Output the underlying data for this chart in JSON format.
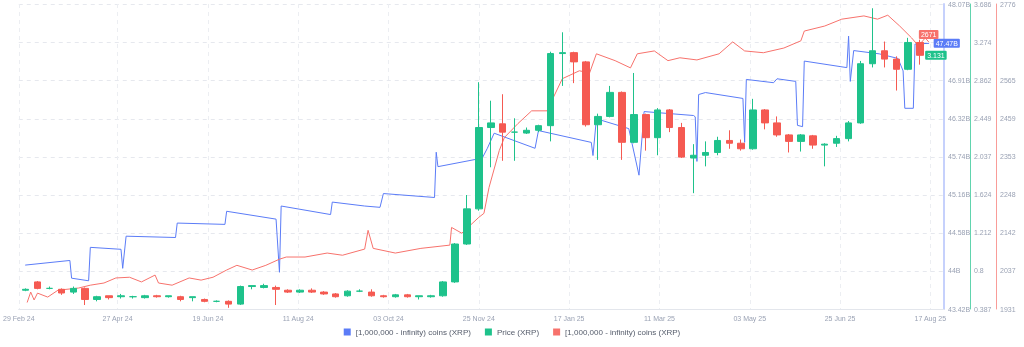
{
  "chart_data": {
    "type": "line",
    "legend": "bottom",
    "grid": true,
    "marker": "none",
    "line_style": "solid",
    "xlim": [
      "2024-02-29",
      "2025-08-25"
    ],
    "xticks": [
      {
        "value": "2024-02-29",
        "label": "29 Feb 24"
      },
      {
        "value": "2024-04-27",
        "label": "27 Apr 24"
      },
      {
        "value": "2024-06-19",
        "label": "19 Jun 24"
      },
      {
        "value": "2024-08-11",
        "label": "11 Aug 24"
      },
      {
        "value": "2024-10-03",
        "label": "03 Oct 24"
      },
      {
        "value": "2024-11-25",
        "label": "25 Nov 24"
      },
      {
        "value": "2025-01-17",
        "label": "17 Jan 25"
      },
      {
        "value": "2025-03-11",
        "label": "11 Mar 25"
      },
      {
        "value": "2025-05-03",
        "label": "03 May 25"
      },
      {
        "value": "2025-06-25",
        "label": "25 Jun 25"
      },
      {
        "value": "2025-08-17",
        "label": "17 Aug 25"
      }
    ],
    "ylim": [
      43.42,
      48.07
    ],
    "yticks": [
      {
        "value": 43.42,
        "label": "43.42B"
      },
      {
        "value": 44,
        "label": "44B"
      },
      {
        "value": 44.58,
        "label": "44.58B"
      },
      {
        "value": 45.16,
        "label": "45.16B"
      },
      {
        "value": 45.74,
        "label": "45.74B"
      },
      {
        "value": 46.32,
        "label": "46.32B"
      },
      {
        "value": 46.91,
        "label": "46.91B"
      },
      {
        "value": 47.49,
        "label": null
      },
      {
        "value": 48.07,
        "label": "48.07B"
      }
    ],
    "y2lim": [
      0.387,
      3.686
    ],
    "y2ticks": [
      0.387,
      0.8,
      1.212,
      1.624,
      2.037,
      2.449,
      2.862,
      3.274,
      3.686
    ],
    "y3lim": [
      1931,
      2776
    ],
    "y3ticks": [
      1931,
      2037,
      2142,
      2248,
      2353,
      2459,
      2565,
      2776
    ],
    "series": [
      {
        "name": "[1,000,000 - infinity) coins (XRP)",
        "axis": "y",
        "color": "#5b7cf7",
        "x": [
          "2024-03-04",
          "2024-03-30",
          "2024-03-31",
          "2024-04-10",
          "2024-04-11",
          "2024-04-29",
          "2024-04-30",
          "2024-05-02",
          "2024-05-31",
          "2024-06-01",
          "2024-06-29",
          "2024-06-30",
          "2024-07-29",
          "2024-07-31",
          "2024-08-01",
          "2024-08-30",
          "2024-08-31",
          "2024-09-19",
          "2024-09-28",
          "2024-09-30",
          "2024-10-30",
          "2024-10-31",
          "2024-11-01",
          "2024-11-27",
          "2024-11-30",
          "2024-12-04",
          "2024-12-28",
          "2024-12-30",
          "2025-01-30",
          "2025-01-31",
          "2025-02-02",
          "2025-02-21",
          "2025-02-27",
          "2025-03-02",
          "2025-03-31",
          "2025-04-01",
          "2025-04-02",
          "2025-04-03",
          "2025-04-07",
          "2025-04-29",
          "2025-04-30",
          "2025-05-01",
          "2025-05-17",
          "2025-05-19",
          "2025-05-30",
          "2025-05-31",
          "2025-06-03",
          "2025-06-04",
          "2025-06-29",
          "2025-06-30",
          "2025-07-01",
          "2025-07-03",
          "2025-07-18",
          "2025-07-29",
          "2025-08-01",
          "2025-08-02",
          "2025-08-07",
          "2025-08-08",
          "2025-08-16"
        ],
        "values": [
          44.09,
          44.16,
          43.89,
          43.85,
          44.36,
          44.33,
          44.04,
          44.53,
          44.51,
          44.73,
          44.71,
          44.91,
          44.79,
          43.98,
          44.99,
          44.86,
          45.05,
          44.99,
          44.97,
          45.18,
          45.12,
          45.81,
          45.59,
          45.72,
          45.87,
          46.1,
          45.87,
          46.14,
          45.96,
          45.76,
          46.32,
          46.17,
          45.46,
          46.43,
          46.37,
          46.35,
          45.67,
          46.69,
          46.72,
          46.63,
          45.96,
          46.92,
          46.87,
          46.93,
          46.89,
          46.22,
          46.2,
          47.2,
          47.1,
          47.58,
          46.89,
          47.36,
          47.31,
          47.24,
          47.05,
          46.48,
          46.48,
          47.46,
          47.47
        ],
        "value_labels": [
          null,
          null,
          null,
          null,
          null,
          null,
          null,
          null,
          null,
          null,
          null,
          null,
          null,
          null,
          null,
          null,
          null,
          null,
          null,
          null,
          null,
          null,
          null,
          null,
          null,
          null,
          null,
          null,
          null,
          null,
          null,
          null,
          null,
          null,
          null,
          null,
          null,
          null,
          null,
          null,
          null,
          null,
          null,
          null,
          null,
          null,
          null,
          null,
          null,
          null,
          null,
          null,
          null,
          null,
          null,
          null,
          null,
          null,
          "47.47B"
        ]
      },
      {
        "name": "Price (XRP)",
        "type": "candlestick",
        "axis": "y2",
        "color": "#1ec28b",
        "x": [
          "2024-03-04",
          "2024-03-11",
          "2024-03-18",
          "2024-03-25",
          "2024-04-01",
          "2024-04-08",
          "2024-04-15",
          "2024-04-22",
          "2024-04-29",
          "2024-05-06",
          "2024-05-13",
          "2024-05-20",
          "2024-05-27",
          "2024-06-03",
          "2024-06-10",
          "2024-06-17",
          "2024-06-24",
          "2024-07-01",
          "2024-07-08",
          "2024-07-15",
          "2024-07-22",
          "2024-07-29",
          "2024-08-05",
          "2024-08-12",
          "2024-08-19",
          "2024-08-26",
          "2024-09-02",
          "2024-09-09",
          "2024-09-16",
          "2024-09-23",
          "2024-09-30",
          "2024-10-07",
          "2024-10-14",
          "2024-10-21",
          "2024-10-28",
          "2024-11-04",
          "2024-11-11",
          "2024-11-18",
          "2024-11-25",
          "2024-12-02",
          "2024-12-09",
          "2024-12-16",
          "2024-12-23",
          "2024-12-30",
          "2025-01-06",
          "2025-01-13",
          "2025-01-20",
          "2025-01-27",
          "2025-02-03",
          "2025-02-10",
          "2025-02-17",
          "2025-02-24",
          "2025-03-03",
          "2025-03-10",
          "2025-03-17",
          "2025-03-24",
          "2025-03-31",
          "2025-04-07",
          "2025-04-14",
          "2025-04-21",
          "2025-04-28",
          "2025-05-05",
          "2025-05-12",
          "2025-05-19",
          "2025-05-26",
          "2025-06-02",
          "2025-06-09",
          "2025-06-16",
          "2025-06-23",
          "2025-06-30",
          "2025-07-07",
          "2025-07-14",
          "2025-07-21",
          "2025-07-28",
          "2025-08-04",
          "2025-08-11"
        ],
        "ohlc": [
          [
            0.59,
            0.61,
            0.58,
            0.6
          ],
          [
            0.68,
            0.69,
            0.6,
            0.61
          ],
          [
            0.61,
            0.63,
            0.6,
            0.61
          ],
          [
            0.6,
            0.61,
            0.54,
            0.56
          ],
          [
            0.57,
            0.63,
            0.55,
            0.61
          ],
          [
            0.61,
            0.62,
            0.43,
            0.49
          ],
          [
            0.49,
            0.53,
            0.47,
            0.52
          ],
          [
            0.53,
            0.53,
            0.49,
            0.51
          ],
          [
            0.52,
            0.55,
            0.5,
            0.53
          ],
          [
            0.52,
            0.53,
            0.5,
            0.52
          ],
          [
            0.51,
            0.54,
            0.5,
            0.53
          ],
          [
            0.53,
            0.54,
            0.51,
            0.52
          ],
          [
            0.52,
            0.53,
            0.51,
            0.53
          ],
          [
            0.52,
            0.53,
            0.47,
            0.49
          ],
          [
            0.51,
            0.52,
            0.47,
            0.52
          ],
          [
            0.49,
            0.5,
            0.46,
            0.47
          ],
          [
            0.47,
            0.48,
            0.46,
            0.47
          ],
          [
            0.47,
            0.48,
            0.4,
            0.44
          ],
          [
            0.44,
            0.64,
            0.43,
            0.63
          ],
          [
            0.63,
            0.64,
            0.6,
            0.64
          ],
          [
            0.62,
            0.66,
            0.61,
            0.64
          ],
          [
            0.62,
            0.64,
            0.43,
            0.6
          ],
          [
            0.59,
            0.6,
            0.56,
            0.57
          ],
          [
            0.57,
            0.6,
            0.56,
            0.59
          ],
          [
            0.59,
            0.61,
            0.56,
            0.57
          ],
          [
            0.57,
            0.58,
            0.54,
            0.55
          ],
          [
            0.55,
            0.56,
            0.51,
            0.52
          ],
          [
            0.53,
            0.59,
            0.52,
            0.58
          ],
          [
            0.58,
            0.6,
            0.57,
            0.58
          ],
          [
            0.57,
            0.6,
            0.52,
            0.53
          ],
          [
            0.53,
            0.54,
            0.51,
            0.52
          ],
          [
            0.52,
            0.55,
            0.51,
            0.54
          ],
          [
            0.54,
            0.55,
            0.51,
            0.52
          ],
          [
            0.52,
            0.53,
            0.49,
            0.53
          ],
          [
            0.52,
            0.54,
            0.51,
            0.53
          ],
          [
            0.53,
            0.69,
            0.52,
            0.68
          ],
          [
            0.68,
            1.1,
            0.67,
            1.09
          ],
          [
            1.09,
            1.62,
            1.08,
            1.47
          ],
          [
            1.47,
            2.84,
            1.45,
            2.35
          ],
          [
            2.35,
            2.64,
            1.92,
            2.4
          ],
          [
            2.39,
            2.71,
            1.99,
            2.3
          ],
          [
            2.3,
            2.45,
            1.99,
            2.3
          ],
          [
            2.29,
            2.35,
            2.28,
            2.32
          ],
          [
            2.32,
            2.38,
            2.3,
            2.37
          ],
          [
            2.37,
            3.17,
            2.2,
            3.15
          ],
          [
            3.15,
            3.38,
            2.8,
            3.16
          ],
          [
            3.16,
            3.17,
            2.83,
            3.06
          ],
          [
            3.06,
            3.07,
            2.36,
            2.38
          ],
          [
            2.38,
            2.5,
            2.0,
            2.47
          ],
          [
            2.47,
            2.8,
            2.46,
            2.73
          ],
          [
            2.73,
            2.74,
            2.0,
            2.19
          ],
          [
            2.19,
            2.94,
            2.18,
            2.49
          ],
          [
            2.49,
            2.5,
            2.1,
            2.24
          ],
          [
            2.24,
            2.56,
            2.05,
            2.54
          ],
          [
            2.54,
            2.55,
            2.3,
            2.35
          ],
          [
            2.35,
            2.4,
            2.02,
            2.03
          ],
          [
            2.02,
            2.17,
            1.64,
            2.05
          ],
          [
            2.05,
            2.2,
            1.93,
            2.08
          ],
          [
            2.08,
            2.25,
            2.05,
            2.21
          ],
          [
            2.21,
            2.32,
            2.12,
            2.18
          ],
          [
            2.18,
            2.22,
            2.1,
            2.12
          ],
          [
            2.12,
            2.66,
            2.11,
            2.54
          ],
          [
            2.54,
            2.55,
            2.33,
            2.4
          ],
          [
            2.4,
            2.47,
            2.25,
            2.27
          ],
          [
            2.27,
            2.28,
            2.08,
            2.2
          ],
          [
            2.2,
            2.28,
            2.09,
            2.27
          ],
          [
            2.26,
            2.27,
            2.12,
            2.16
          ],
          [
            2.16,
            2.18,
            1.93,
            2.17
          ],
          [
            2.18,
            2.26,
            2.14,
            2.23
          ],
          [
            2.23,
            2.42,
            2.2,
            2.4
          ],
          [
            2.4,
            3.07,
            2.39,
            3.04
          ],
          [
            3.04,
            3.64,
            3.0,
            3.18
          ],
          [
            3.18,
            3.28,
            3.0,
            3.09
          ],
          [
            3.09,
            3.12,
            2.75,
            2.98
          ],
          [
            2.98,
            3.32,
            2.97,
            3.27
          ],
          [
            3.27,
            3.3,
            3.03,
            3.131
          ]
        ],
        "colors": [
          "#1ec28b",
          "#f55a52",
          "#1ec28b",
          "#f55a52",
          "#1ec28b",
          "#f55a52",
          "#1ec28b",
          "#f55a52",
          "#1ec28b",
          "#1ec28b",
          "#1ec28b",
          "#f55a52",
          "#1ec28b",
          "#f55a52",
          "#1ec28b",
          "#f55a52",
          "#1ec28b",
          "#f55a52",
          "#1ec28b",
          "#1ec28b",
          "#1ec28b",
          "#f55a52",
          "#f55a52",
          "#1ec28b",
          "#f55a52",
          "#f55a52",
          "#f55a52",
          "#1ec28b",
          "#1ec28b",
          "#f55a52",
          "#f55a52",
          "#1ec28b",
          "#f55a52",
          "#1ec28b",
          "#1ec28b",
          "#1ec28b",
          "#1ec28b",
          "#1ec28b",
          "#1ec28b",
          "#1ec28b",
          "#f55a52",
          "#1ec28b",
          "#1ec28b",
          "#1ec28b",
          "#1ec28b",
          "#1ec28b",
          "#f55a52",
          "#f55a52",
          "#1ec28b",
          "#1ec28b",
          "#f55a52",
          "#1ec28b",
          "#f55a52",
          "#1ec28b",
          "#f55a52",
          "#f55a52",
          "#1ec28b",
          "#1ec28b",
          "#1ec28b",
          "#f55a52",
          "#f55a52",
          "#1ec28b",
          "#f55a52",
          "#f55a52",
          "#f55a52",
          "#1ec28b",
          "#f55a52",
          "#1ec28b",
          "#1ec28b",
          "#1ec28b",
          "#1ec28b",
          "#1ec28b",
          "#f55a52",
          "#f55a52",
          "#1ec28b",
          "#f55a52"
        ],
        "value_labels": [
          null,
          null,
          null,
          null,
          null,
          null,
          null,
          null,
          null,
          null,
          null,
          null,
          null,
          null,
          null,
          null,
          null,
          null,
          null,
          null,
          null,
          null,
          null,
          null,
          null,
          null,
          null,
          null,
          null,
          null,
          null,
          null,
          null,
          null,
          null,
          null,
          null,
          null,
          null,
          null,
          null,
          null,
          null,
          null,
          null,
          null,
          null,
          null,
          null,
          null,
          null,
          null,
          null,
          null,
          null,
          null,
          null,
          null,
          null,
          null,
          null,
          null,
          null,
          null,
          null,
          null,
          null,
          null,
          null,
          null,
          null,
          null,
          null,
          null,
          null,
          "3.131"
        ]
      },
      {
        "name": "[1,000,000 - infinity) coins (XRP)",
        "axis": "y3",
        "color": "#f7726c",
        "x": [
          "2024-03-05",
          "2024-03-07",
          "2024-03-09",
          "2024-03-11",
          "2024-03-17",
          "2024-03-23",
          "2024-04-04",
          "2024-04-11",
          "2024-04-19",
          "2024-04-26",
          "2024-05-04",
          "2024-05-11",
          "2024-05-19",
          "2024-05-21",
          "2024-05-29",
          "2024-06-08",
          "2024-06-15",
          "2024-06-22",
          "2024-06-30",
          "2024-07-06",
          "2024-07-15",
          "2024-07-23",
          "2024-07-31",
          "2024-08-04",
          "2024-08-15",
          "2024-08-28",
          "2024-09-06",
          "2024-09-19",
          "2024-09-21",
          "2024-09-24",
          "2024-10-07",
          "2024-10-22",
          "2024-11-08",
          "2024-11-09",
          "2024-11-15",
          "2024-11-25",
          "2024-11-28",
          "2024-12-01",
          "2024-12-07",
          "2024-12-10",
          "2024-12-18",
          "2024-12-26",
          "2025-01-04",
          "2025-01-13",
          "2025-01-23",
          "2025-01-29",
          "2025-02-02",
          "2025-02-13",
          "2025-02-22",
          "2025-02-26",
          "2025-03-08",
          "2025-03-16",
          "2025-03-23",
          "2025-04-02",
          "2025-04-15",
          "2025-04-23",
          "2025-04-30",
          "2025-05-11",
          "2025-05-23",
          "2025-06-02",
          "2025-06-04",
          "2025-06-16",
          "2025-06-26",
          "2025-07-09",
          "2025-07-17",
          "2025-07-23",
          "2025-07-30",
          "2025-08-06",
          "2025-08-10",
          "2025-08-14",
          "2025-08-16"
        ],
        "values": [
          1950,
          1978,
          1956,
          1975,
          1964,
          1983,
          1989,
          1997,
          2003,
          2017,
          2019,
          2006,
          2025,
          2003,
          1997,
          2017,
          2011,
          2019,
          2039,
          2052,
          2039,
          2052,
          2069,
          2075,
          2075,
          2086,
          2080,
          2097,
          2149,
          2099,
          2086,
          2099,
          2108,
          2157,
          2141,
          2185,
          2196,
          2268,
          2370,
          2406,
          2445,
          2480,
          2480,
          2569,
          2591,
          2585,
          2638,
          2619,
          2599,
          2638,
          2646,
          2619,
          2627,
          2621,
          2638,
          2671,
          2646,
          2641,
          2654,
          2674,
          2701,
          2715,
          2734,
          2743,
          2734,
          2745,
          2715,
          2682,
          2660,
          2682,
          2671
        ],
        "value_labels": [
          null,
          null,
          null,
          null,
          null,
          null,
          null,
          null,
          null,
          null,
          null,
          null,
          null,
          null,
          null,
          null,
          null,
          null,
          null,
          null,
          null,
          null,
          null,
          null,
          null,
          null,
          null,
          null,
          null,
          null,
          null,
          null,
          null,
          null,
          null,
          null,
          null,
          null,
          null,
          null,
          null,
          null,
          null,
          null,
          null,
          null,
          null,
          null,
          null,
          null,
          null,
          null,
          null,
          null,
          null,
          null,
          null,
          null,
          null,
          null,
          null,
          null,
          null,
          null,
          null,
          null,
          null,
          null,
          null,
          null,
          "2671"
        ]
      }
    ]
  }
}
